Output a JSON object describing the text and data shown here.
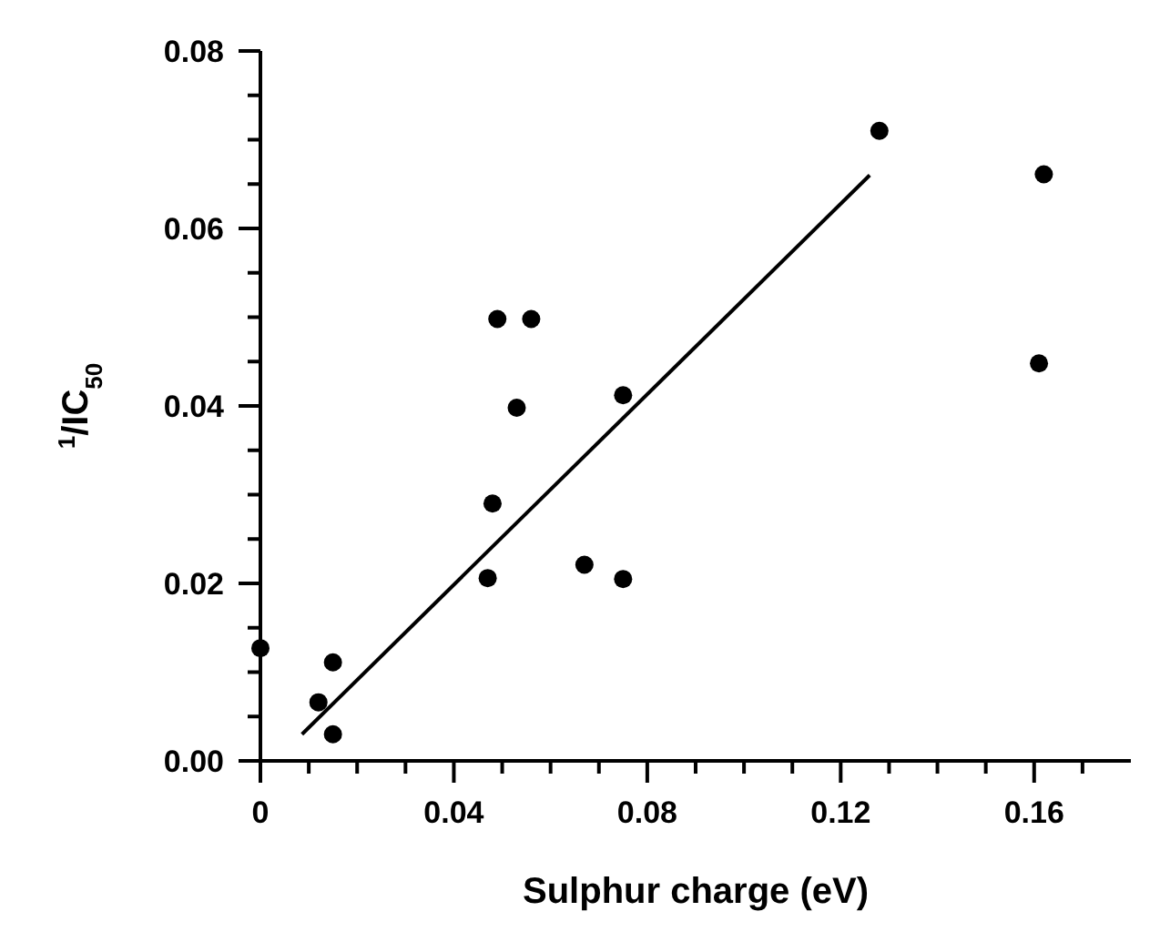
{
  "chart_data": {
    "type": "scatter",
    "xlabel": "Sulphur charge (eV)",
    "ylabel": "$^{1}$/IC$_{50}$",
    "xlim": [
      0,
      0.18
    ],
    "ylim": [
      0,
      0.08
    ],
    "xticks": [
      0,
      {
        "value": 0.01,
        "label": null
      },
      {
        "value": 0.02,
        "label": null
      },
      {
        "value": 0.03,
        "label": null
      },
      0.04,
      {
        "value": 0.05,
        "label": null
      },
      {
        "value": 0.06,
        "label": null
      },
      {
        "value": 0.07,
        "label": null
      },
      0.08,
      {
        "value": 0.09,
        "label": null
      },
      {
        "value": 0.1,
        "label": null
      },
      {
        "value": 0.11,
        "label": null
      },
      0.12,
      {
        "value": 0.13,
        "label": null
      },
      {
        "value": 0.14,
        "label": null
      },
      {
        "value": 0.15,
        "label": null
      },
      0.16,
      {
        "value": 0.17,
        "label": null
      }
    ],
    "yticks": [
      {
        "value": 0,
        "label": "0.00"
      },
      {
        "value": 0.005,
        "label": null
      },
      {
        "value": 0.01,
        "label": null
      },
      {
        "value": 0.015,
        "label": null
      },
      0.02,
      {
        "value": 0.025,
        "label": null
      },
      {
        "value": 0.03,
        "label": null
      },
      {
        "value": 0.035,
        "label": null
      },
      0.04,
      {
        "value": 0.045,
        "label": null
      },
      {
        "value": 0.05,
        "label": null
      },
      {
        "value": 0.055,
        "label": null
      },
      0.06,
      {
        "value": 0.065,
        "label": null
      },
      {
        "value": 0.07,
        "label": null
      },
      {
        "value": 0.075,
        "label": null
      },
      0.08
    ],
    "grid": false,
    "series": [
      {
        "marker": "circle",
        "color": "#000000",
        "x": [
          0.0,
          0.012,
          0.015,
          0.015,
          0.047,
          0.048,
          0.049,
          0.056,
          0.053,
          0.067,
          0.075,
          0.075,
          0.128,
          0.161,
          0.162
        ],
        "values": [
          0.0127,
          0.0066,
          0.0111,
          0.003,
          0.0206,
          0.029,
          0.0498,
          0.0498,
          0.0398,
          0.0221,
          0.0205,
          0.0412,
          0.071,
          0.0448,
          0.0661
        ]
      },
      {
        "type": "line",
        "color": "#000000",
        "x": [
          0.0086,
          0.126
        ],
        "values": [
          0.003,
          0.066
        ]
      }
    ]
  }
}
